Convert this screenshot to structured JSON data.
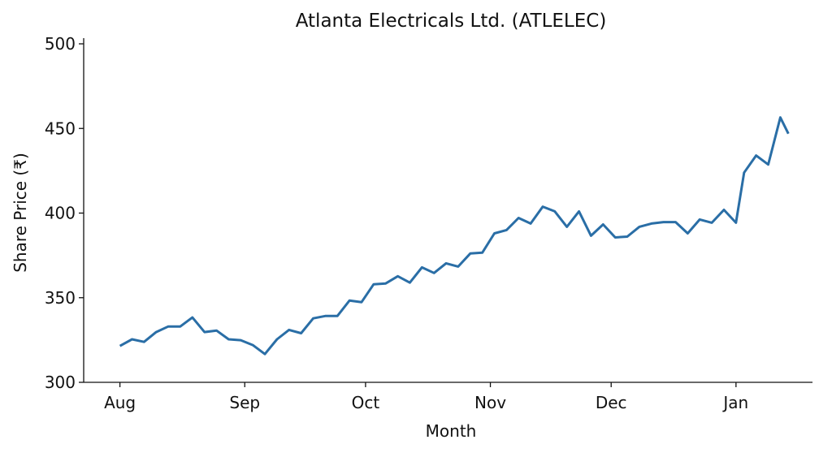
{
  "chart_data": {
    "type": "line",
    "title": "Atlanta Electricals Ltd. (ATLELEC)",
    "xlabel": "Month",
    "ylabel": "Share Price (₹)",
    "ylim": [
      300,
      500
    ],
    "xlim": [
      -9,
      172
    ],
    "grid": false,
    "yticks": [
      300,
      350,
      400,
      450,
      500
    ],
    "xticks": [
      {
        "label": "Aug",
        "day": 0
      },
      {
        "label": "Sep",
        "day": 31
      },
      {
        "label": "Oct",
        "day": 61
      },
      {
        "label": "Nov",
        "day": 92
      },
      {
        "label": "Dec",
        "day": 122
      },
      {
        "label": "Jan",
        "day": 153
      }
    ],
    "color": "#2a6ea6",
    "series": [
      {
        "name": "ATLELEC",
        "x": [
          0,
          3,
          6,
          9,
          12,
          15,
          18,
          21,
          24,
          27,
          30,
          33,
          36,
          39,
          42,
          45,
          48,
          51,
          54,
          57,
          60,
          63,
          66,
          69,
          72,
          75,
          78,
          81,
          84,
          87,
          90,
          93,
          96,
          99,
          102,
          105,
          108,
          111,
          114,
          117,
          120,
          123,
          126,
          129,
          132,
          135,
          138,
          141,
          144,
          147,
          150,
          153,
          155,
          158,
          161,
          164,
          166
        ],
        "values": [
          321.5,
          325.4,
          323.9,
          329.7,
          333,
          333,
          338.3,
          329.7,
          330.6,
          325.4,
          324.9,
          322,
          316.7,
          325.4,
          331,
          329,
          337.8,
          339.2,
          339.2,
          348.3,
          347.4,
          357.9,
          358.4,
          362.7,
          358.9,
          367.9,
          364.6,
          370.3,
          368.4,
          376.1,
          376.6,
          388,
          390,
          397.1,
          393.8,
          403.8,
          401,
          391.9,
          401,
          386.6,
          393.3,
          385.6,
          386.1,
          391.9,
          393.8,
          394.7,
          394.7,
          388,
          396.2,
          394.3,
          401.9,
          394.3,
          423.9,
          434,
          428.7,
          456.5,
          446.9
        ]
      }
    ]
  }
}
